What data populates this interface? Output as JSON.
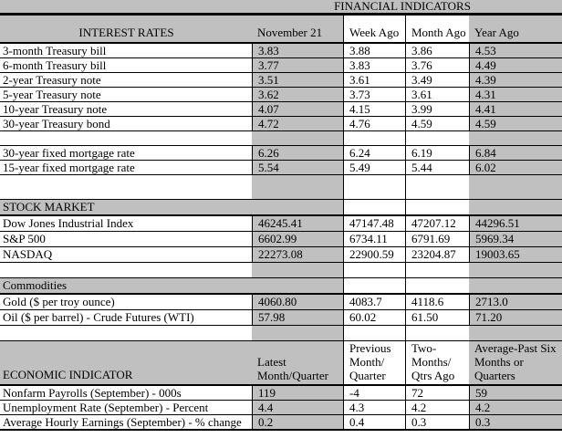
{
  "title": "FINANCIAL INDICATORS",
  "colors": {
    "band_gray": "#c0c0c0",
    "border": "#000000",
    "cell_white": "#ffffff"
  },
  "interest": {
    "header_label": "INTEREST RATES",
    "columns": [
      "November 21",
      "Week Ago",
      "Month Ago",
      "Year Ago"
    ],
    "rows": [
      {
        "label": "3-month Treasury bill",
        "values": [
          "3.83",
          "3.88",
          "3.86",
          "4.53"
        ]
      },
      {
        "label": "6-month Treasury bill",
        "values": [
          "3.77",
          "3.83",
          "3.76",
          "4.49"
        ]
      },
      {
        "label": "2-year Treasury note",
        "values": [
          "3.51",
          "3.61",
          "3.49",
          "4.39"
        ]
      },
      {
        "label": "5-year Treasury note",
        "values": [
          "3.62",
          "3.73",
          "3.61",
          "4.31"
        ]
      },
      {
        "label": "10-year Treasury note",
        "values": [
          "4.07",
          "4.15",
          "3.99",
          "4.41"
        ]
      },
      {
        "label": "30-year Treasury bond",
        "values": [
          "4.72",
          "4.76",
          "4.59",
          "4.59"
        ]
      }
    ],
    "mortgage_rows": [
      {
        "label": "30-year fixed mortgage rate",
        "values": [
          "6.26",
          "6.24",
          "6.19",
          "6.84"
        ]
      },
      {
        "label": "15-year fixed mortgage rate",
        "values": [
          "5.54",
          "5.49",
          "5.44",
          "6.02"
        ]
      }
    ]
  },
  "stock": {
    "section_label": "STOCK MARKET",
    "rows": [
      {
        "label": "Dow Jones Industrial Index",
        "values": [
          "46245.41",
          "47147.48",
          "47207.12",
          "44296.51"
        ]
      },
      {
        "label": "S&P 500",
        "values": [
          "6602.99",
          "6734.11",
          "6791.69",
          "5969.34"
        ]
      },
      {
        "label": "NASDAQ",
        "values": [
          "22273.08",
          "22900.59",
          "23204.87",
          "19003.65"
        ]
      }
    ]
  },
  "commodities": {
    "section_label": "Commodities",
    "rows": [
      {
        "label": "Gold ($ per troy ounce)",
        "values": [
          "4060.80",
          "4083.7",
          "4118.6",
          "2713.0"
        ]
      },
      {
        "label": "Oil ($ per barrel) - Crude Futures (WTI)",
        "values": [
          "57.98",
          "60.02",
          "61.50",
          "71.20"
        ]
      }
    ]
  },
  "economic": {
    "header_label": "ECONOMIC INDICATOR",
    "col1_lines": [
      "Latest",
      "Month/Quarter"
    ],
    "col2_lines": [
      "Previous",
      "Month/",
      "Quarter"
    ],
    "col3_lines": [
      "Two-",
      "Months/",
      "Qtrs Ago"
    ],
    "col4_lines": [
      "Average-Past Six",
      "Months or",
      "Quarters"
    ],
    "rows": [
      {
        "label": "Nonfarm Payrolls (September) - 000s",
        "values": [
          "119",
          "-4",
          "72",
          "59"
        ]
      },
      {
        "label": "Unemployment Rate (September) - Percent",
        "values": [
          "4.4",
          "4.3",
          "4.2",
          "4.2"
        ]
      },
      {
        "label": "Average Hourly Earnings (September) - % change",
        "values": [
          "0.2",
          "0.4",
          "0.3",
          "0.3"
        ]
      }
    ]
  }
}
